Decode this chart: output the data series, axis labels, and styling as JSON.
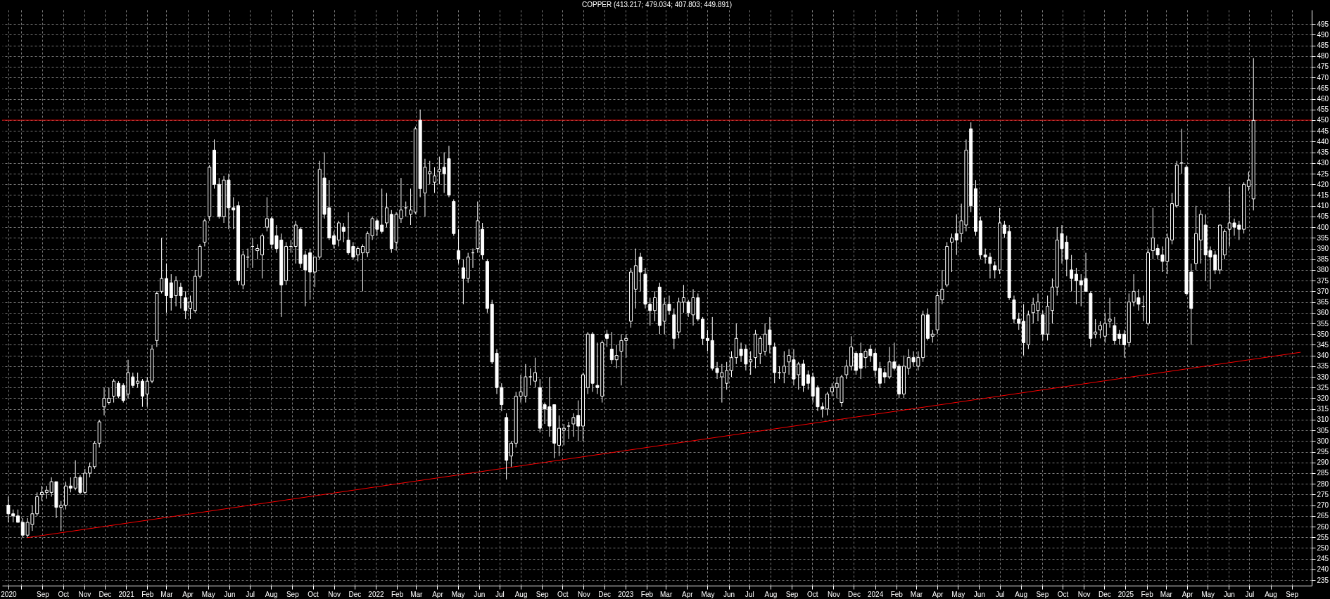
{
  "chart_data": {
    "type": "candlestick",
    "title": "COPPER (413.217; 479.034; 407.803; 449.891)",
    "x": [
      "2020-07-13",
      "2020-07-20",
      "2020-07-27",
      "2020-08-03",
      "2020-08-10",
      "2020-08-17",
      "2020-08-24",
      "2020-08-31",
      "2020-09-07",
      "2020-09-14",
      "2020-09-21",
      "2020-09-28",
      "2020-10-05",
      "2020-10-12",
      "2020-10-19",
      "2020-10-26",
      "2020-11-02",
      "2020-11-09",
      "2020-11-16",
      "2020-11-23",
      "2020-11-30",
      "2020-12-07",
      "2020-12-14",
      "2020-12-21",
      "2020-12-28",
      "2021-01-04",
      "2021-01-11",
      "2021-01-18",
      "2021-01-25",
      "2021-02-01",
      "2021-02-08",
      "2021-02-15",
      "2021-02-22",
      "2021-03-01",
      "2021-03-08",
      "2021-03-15",
      "2021-03-22",
      "2021-03-29",
      "2021-04-05",
      "2021-04-12",
      "2021-04-19",
      "2021-04-26",
      "2021-05-03",
      "2021-05-10",
      "2021-05-17",
      "2021-05-24",
      "2021-05-31",
      "2021-06-07",
      "2021-06-14",
      "2021-06-21",
      "2021-06-28",
      "2021-07-05",
      "2021-07-12",
      "2021-07-19",
      "2021-07-26",
      "2021-08-02",
      "2021-08-09",
      "2021-08-16",
      "2021-08-23",
      "2021-08-30",
      "2021-09-06",
      "2021-09-13",
      "2021-09-20",
      "2021-09-27",
      "2021-10-04",
      "2021-10-11",
      "2021-10-18",
      "2021-10-25",
      "2021-11-01",
      "2021-11-08",
      "2021-11-15",
      "2021-11-22",
      "2021-11-29",
      "2021-12-06",
      "2021-12-13",
      "2021-12-20",
      "2021-12-27",
      "2022-01-03",
      "2022-01-10",
      "2022-01-17",
      "2022-01-24",
      "2022-01-31",
      "2022-02-07",
      "2022-02-14",
      "2022-02-21",
      "2022-02-28",
      "2022-03-07",
      "2022-03-14",
      "2022-03-21",
      "2022-03-28",
      "2022-04-04",
      "2022-04-11",
      "2022-04-18",
      "2022-04-25",
      "2022-05-02",
      "2022-05-09",
      "2022-05-16",
      "2022-05-23",
      "2022-05-30",
      "2022-06-06",
      "2022-06-13",
      "2022-06-20",
      "2022-06-27",
      "2022-07-04",
      "2022-07-11",
      "2022-07-18",
      "2022-07-25",
      "2022-08-01",
      "2022-08-08",
      "2022-08-15",
      "2022-08-22",
      "2022-08-29",
      "2022-09-05",
      "2022-09-12",
      "2022-09-19",
      "2022-09-26",
      "2022-10-03",
      "2022-10-10",
      "2022-10-17",
      "2022-10-24",
      "2022-10-31",
      "2022-11-07",
      "2022-11-14",
      "2022-11-21",
      "2022-11-28",
      "2022-12-05",
      "2022-12-12",
      "2022-12-19",
      "2022-12-26",
      "2023-01-02",
      "2023-01-09",
      "2023-01-16",
      "2023-01-23",
      "2023-01-30",
      "2023-02-06",
      "2023-02-13",
      "2023-02-20",
      "2023-02-27",
      "2023-03-06",
      "2023-03-13",
      "2023-03-20",
      "2023-03-27",
      "2023-04-03",
      "2023-04-10",
      "2023-04-17",
      "2023-04-24",
      "2023-05-01",
      "2023-05-08",
      "2023-05-15",
      "2023-05-22",
      "2023-05-29",
      "2023-06-05",
      "2023-06-12",
      "2023-06-19",
      "2023-06-26",
      "2023-07-03",
      "2023-07-10",
      "2023-07-17",
      "2023-07-24",
      "2023-07-31",
      "2023-08-07",
      "2023-08-14",
      "2023-08-21",
      "2023-08-28",
      "2023-09-04",
      "2023-09-11",
      "2023-09-18",
      "2023-09-25",
      "2023-10-02",
      "2023-10-09",
      "2023-10-16",
      "2023-10-23",
      "2023-10-30",
      "2023-11-06",
      "2023-11-13",
      "2023-11-20",
      "2023-11-27",
      "2023-12-04",
      "2023-12-11",
      "2023-12-18",
      "2023-12-25",
      "2024-01-01",
      "2024-01-08",
      "2024-01-15",
      "2024-01-22",
      "2024-01-29",
      "2024-02-05",
      "2024-02-12",
      "2024-02-19",
      "2024-02-26",
      "2024-03-04",
      "2024-03-11",
      "2024-03-18",
      "2024-03-25",
      "2024-04-01",
      "2024-04-08",
      "2024-04-15",
      "2024-04-22",
      "2024-04-29",
      "2024-05-06",
      "2024-05-13",
      "2024-05-20",
      "2024-05-27",
      "2024-06-03",
      "2024-06-10",
      "2024-06-17",
      "2024-06-24",
      "2024-07-01",
      "2024-07-08",
      "2024-07-15",
      "2024-07-22",
      "2024-07-29",
      "2024-08-05",
      "2024-08-12",
      "2024-08-19",
      "2024-08-26",
      "2024-09-02",
      "2024-09-09",
      "2024-09-16",
      "2024-09-23",
      "2024-09-30",
      "2024-10-07",
      "2024-10-14",
      "2024-10-21",
      "2024-10-28",
      "2024-11-04",
      "2024-11-11",
      "2024-11-18",
      "2024-11-25",
      "2024-12-02",
      "2024-12-09",
      "2024-12-16",
      "2024-12-23",
      "2024-12-30",
      "2025-01-06",
      "2025-01-13",
      "2025-01-20",
      "2025-01-27",
      "2025-02-03",
      "2025-02-10",
      "2025-02-17",
      "2025-02-24",
      "2025-03-03",
      "2025-03-10",
      "2025-03-17",
      "2025-03-24",
      "2025-03-31",
      "2025-04-07",
      "2025-04-14",
      "2025-04-21",
      "2025-04-28",
      "2025-05-05",
      "2025-05-12",
      "2025-05-19",
      "2025-05-26",
      "2025-06-02",
      "2025-06-09",
      "2025-06-16",
      "2025-06-23",
      "2025-06-30",
      "2025-07-07"
    ],
    "series": [
      {
        "type": "line",
        "x": [
          "2020-08-09",
          "2025-09-14"
        ],
        "values": [
          254.8,
          341.5
        ],
        "color": "#ff0000"
      },
      {
        "color": "#ffffff",
        "ohlc": [
          [
            270,
            274,
            262,
            266
          ],
          [
            266,
            268,
            262,
            265
          ],
          [
            265,
            268,
            262,
            262
          ],
          [
            262,
            264,
            255,
            256
          ],
          [
            256,
            264,
            255,
            262
          ],
          [
            261,
            270,
            258,
            266
          ],
          [
            266,
            276,
            265,
            274
          ],
          [
            275,
            279,
            272,
            276
          ],
          [
            276,
            279,
            273,
            277
          ],
          [
            276,
            283,
            274,
            281
          ],
          [
            281,
            281,
            264,
            269
          ],
          [
            269,
            272,
            258,
            270
          ],
          [
            270,
            281,
            268,
            279
          ],
          [
            279,
            283,
            276,
            278
          ],
          [
            278,
            291,
            277,
            283
          ],
          [
            283,
            284,
            275,
            276
          ],
          [
            276,
            287,
            275,
            285
          ],
          [
            285,
            290,
            283,
            288
          ],
          [
            288,
            300,
            287,
            299
          ],
          [
            299,
            310,
            297,
            309
          ],
          [
            316,
            325,
            312,
            320
          ],
          [
            318,
            325,
            317,
            320
          ],
          [
            321,
            329,
            318,
            328
          ],
          [
            327,
            328,
            320,
            321
          ],
          [
            326,
            327,
            318,
            319
          ],
          [
            322,
            338,
            320,
            332
          ],
          [
            330,
            332,
            325,
            326
          ],
          [
            327,
            332,
            325,
            328
          ],
          [
            328,
            329,
            316,
            321
          ],
          [
            322,
            330,
            316,
            328
          ],
          [
            328,
            345,
            327,
            343
          ],
          [
            347,
            370,
            344,
            369
          ],
          [
            370,
            395,
            369,
            376
          ],
          [
            376,
            383,
            360,
            368
          ],
          [
            374,
            378,
            361,
            367
          ],
          [
            368,
            377,
            363,
            375
          ],
          [
            372,
            374,
            362,
            368
          ],
          [
            367,
            370,
            357,
            361
          ],
          [
            362,
            368,
            357,
            365
          ],
          [
            361,
            380,
            360,
            377
          ],
          [
            377,
            392,
            376,
            391
          ],
          [
            393,
            404,
            391,
            403
          ],
          [
            405,
            429,
            403,
            428
          ],
          [
            436,
            441,
            418,
            420
          ],
          [
            420,
            423,
            404,
            405
          ],
          [
            405,
            424,
            402,
            422
          ],
          [
            422,
            425,
            399,
            409
          ],
          [
            409,
            414,
            399,
            408
          ],
          [
            410,
            412,
            373,
            375
          ],
          [
            373,
            389,
            371,
            387
          ],
          [
            386,
            390,
            381,
            386
          ],
          [
            391,
            395,
            381,
            391
          ],
          [
            389,
            392,
            385,
            390
          ],
          [
            387,
            397,
            376,
            396
          ],
          [
            400,
            414,
            398,
            404
          ],
          [
            404,
            405,
            390,
            392
          ],
          [
            396,
            401,
            388,
            390
          ],
          [
            394,
            397,
            358,
            373
          ],
          [
            375,
            393,
            373,
            391
          ],
          [
            391,
            394,
            388,
            391
          ],
          [
            391,
            403,
            383,
            401
          ],
          [
            399,
            400,
            381,
            383
          ],
          [
            387,
            389,
            363,
            380
          ],
          [
            388,
            390,
            366,
            379
          ],
          [
            379,
            386,
            372,
            386
          ],
          [
            386,
            431,
            385,
            427
          ],
          [
            423,
            435,
            404,
            406
          ],
          [
            409,
            422,
            394,
            395
          ],
          [
            396,
            398,
            390,
            392
          ],
          [
            394,
            403,
            391,
            402
          ],
          [
            400,
            402,
            393,
            398
          ],
          [
            394,
            407,
            387,
            388
          ],
          [
            391,
            393,
            385,
            386
          ],
          [
            387,
            391,
            384,
            390
          ],
          [
            388,
            392,
            370,
            391
          ],
          [
            388,
            398,
            386,
            397
          ],
          [
            396,
            405,
            394,
            404
          ],
          [
            403,
            404,
            396,
            399
          ],
          [
            401,
            418,
            397,
            398
          ],
          [
            402,
            416,
            400,
            409
          ],
          [
            406,
            408,
            388,
            390
          ],
          [
            393,
            407,
            389,
            406
          ],
          [
            404,
            423,
            402,
            408
          ],
          [
            409,
            412,
            405,
            409
          ],
          [
            406,
            418,
            401,
            408
          ],
          [
            407,
            447,
            406,
            446
          ],
          [
            450,
            455,
            414,
            418
          ],
          [
            416,
            432,
            405,
            428
          ],
          [
            425,
            431,
            420,
            426
          ],
          [
            421,
            428,
            416,
            424
          ],
          [
            426,
            433,
            420,
            427
          ],
          [
            428,
            435,
            416,
            425
          ],
          [
            432,
            438,
            414,
            415
          ],
          [
            412,
            413,
            396,
            397
          ],
          [
            389,
            399,
            383,
            385
          ],
          [
            381,
            385,
            364,
            376
          ],
          [
            376,
            388,
            374,
            386
          ],
          [
            388,
            390,
            381,
            388
          ],
          [
            390,
            412,
            388,
            403
          ],
          [
            399,
            402,
            385,
            387
          ],
          [
            384,
            385,
            360,
            362
          ],
          [
            364,
            366,
            336,
            337
          ],
          [
            341,
            343,
            322,
            325
          ],
          [
            325,
            327,
            314,
            317
          ],
          [
            311,
            313,
            282,
            291
          ],
          [
            293,
            300,
            288,
            299
          ],
          [
            299,
            323,
            297,
            321
          ],
          [
            321,
            331,
            318,
            323
          ],
          [
            321,
            336,
            318,
            330
          ],
          [
            330,
            334,
            326,
            330
          ],
          [
            328,
            339,
            325,
            332
          ],
          [
            325,
            329,
            304,
            306
          ],
          [
            317,
            318,
            308,
            315
          ],
          [
            316,
            330,
            302,
            307
          ],
          [
            317,
            317,
            292,
            299
          ],
          [
            298,
            312,
            293,
            306
          ],
          [
            305,
            308,
            298,
            306
          ],
          [
            307,
            309,
            301,
            307
          ],
          [
            308,
            313,
            302,
            311
          ],
          [
            312,
            319,
            300,
            307
          ],
          [
            307,
            332,
            300,
            331
          ],
          [
            325,
            351,
            322,
            350
          ],
          [
            350,
            351,
            323,
            327
          ],
          [
            326,
            346,
            322,
            325
          ],
          [
            321,
            347,
            318,
            346
          ],
          [
            350,
            352,
            344,
            348
          ],
          [
            343,
            351,
            336,
            338
          ],
          [
            338,
            345,
            334,
            340
          ],
          [
            342,
            350,
            326,
            347
          ],
          [
            347,
            350,
            339,
            348
          ],
          [
            356,
            381,
            353,
            379
          ],
          [
            371,
            390,
            362,
            382
          ],
          [
            386,
            388,
            370,
            379
          ],
          [
            378,
            381,
            362,
            364
          ],
          [
            364,
            367,
            354,
            361
          ],
          [
            361,
            370,
            356,
            367
          ],
          [
            372,
            374,
            350,
            354
          ],
          [
            356,
            367,
            350,
            364
          ],
          [
            364,
            368,
            359,
            361
          ],
          [
            359,
            362,
            343,
            348
          ],
          [
            351,
            367,
            348,
            365
          ],
          [
            365,
            373,
            360,
            367
          ],
          [
            365,
            366,
            358,
            360
          ],
          [
            359,
            371,
            354,
            367
          ],
          [
            367,
            369,
            356,
            357
          ],
          [
            357,
            358,
            345,
            348
          ],
          [
            348,
            352,
            342,
            347
          ],
          [
            347,
            358,
            333,
            334
          ],
          [
            334,
            337,
            329,
            332
          ],
          [
            330,
            336,
            318,
            332
          ],
          [
            327,
            337,
            324,
            333
          ],
          [
            333,
            342,
            330,
            339
          ],
          [
            339,
            355,
            336,
            348
          ],
          [
            343,
            346,
            337,
            340
          ],
          [
            343,
            345,
            333,
            336
          ],
          [
            337,
            342,
            331,
            338
          ],
          [
            339,
            352,
            334,
            350
          ],
          [
            341,
            349,
            336,
            348
          ],
          [
            342,
            355,
            340,
            350
          ],
          [
            352,
            358,
            341,
            345
          ],
          [
            344,
            346,
            327,
            332
          ],
          [
            332,
            335,
            329,
            332
          ],
          [
            332,
            342,
            327,
            335
          ],
          [
            337,
            343,
            331,
            340
          ],
          [
            338,
            343,
            326,
            329
          ],
          [
            331,
            337,
            324,
            336
          ],
          [
            336,
            338,
            323,
            326
          ],
          [
            331,
            333,
            324,
            327
          ],
          [
            330,
            332,
            318,
            321
          ],
          [
            325,
            326,
            314,
            316
          ],
          [
            316,
            318,
            311,
            315
          ],
          [
            315,
            323,
            312,
            322
          ],
          [
            323,
            327,
            321,
            325
          ],
          [
            325,
            330,
            320,
            327
          ],
          [
            318,
            331,
            316,
            330
          ],
          [
            331,
            338,
            329,
            335
          ],
          [
            335,
            349,
            333,
            344
          ],
          [
            341,
            342,
            331,
            333
          ],
          [
            341,
            346,
            329,
            334
          ],
          [
            339,
            343,
            334,
            342
          ],
          [
            343,
            345,
            337,
            340
          ],
          [
            341,
            343,
            330,
            333
          ],
          [
            334,
            337,
            325,
            327
          ],
          [
            332,
            334,
            327,
            330
          ],
          [
            330,
            344,
            329,
            337
          ],
          [
            337,
            346,
            333,
            334
          ],
          [
            335,
            336,
            320,
            322
          ],
          [
            322,
            340,
            320,
            335
          ],
          [
            334,
            343,
            331,
            339
          ],
          [
            339,
            342,
            335,
            337
          ],
          [
            335,
            342,
            333,
            339
          ],
          [
            339,
            361,
            337,
            359
          ],
          [
            359,
            362,
            347,
            348
          ],
          [
            349,
            352,
            346,
            350
          ],
          [
            352,
            370,
            350,
            368
          ],
          [
            366,
            380,
            364,
            371
          ],
          [
            373,
            393,
            372,
            391
          ],
          [
            393,
            397,
            379,
            395
          ],
          [
            397,
            406,
            387,
            394
          ],
          [
            397,
            411,
            393,
            403
          ],
          [
            401,
            441,
            398,
            436
          ],
          [
            446,
            449,
            407,
            410
          ],
          [
            418,
            422,
            396,
            398
          ],
          [
            403,
            405,
            385,
            387
          ],
          [
            387,
            390,
            383,
            386
          ],
          [
            386,
            388,
            376,
            383
          ],
          [
            382,
            384,
            376,
            380
          ],
          [
            380,
            409,
            378,
            402
          ],
          [
            401,
            403,
            395,
            397
          ],
          [
            398,
            401,
            366,
            367
          ],
          [
            366,
            368,
            355,
            357
          ],
          [
            357,
            360,
            352,
            355
          ],
          [
            356,
            364,
            340,
            346
          ],
          [
            345,
            361,
            343,
            359
          ],
          [
            360,
            367,
            355,
            364
          ],
          [
            361,
            369,
            356,
            365
          ],
          [
            359,
            361,
            347,
            350
          ],
          [
            350,
            368,
            347,
            363
          ],
          [
            361,
            376,
            355,
            372
          ],
          [
            372,
            400,
            368,
            394
          ],
          [
            397,
            401,
            383,
            390
          ],
          [
            393,
            396,
            377,
            385
          ],
          [
            380,
            387,
            370,
            376
          ],
          [
            378,
            381,
            364,
            375
          ],
          [
            375,
            378,
            363,
            373
          ],
          [
            376,
            388,
            370,
            370
          ],
          [
            369,
            370,
            344,
            348
          ],
          [
            350,
            357,
            348,
            351
          ],
          [
            352,
            356,
            348,
            354
          ],
          [
            349,
            360,
            346,
            355
          ],
          [
            356,
            367,
            353,
            357
          ],
          [
            354,
            358,
            345,
            347
          ],
          [
            350,
            352,
            345,
            348
          ],
          [
            350,
            352,
            339,
            345
          ],
          [
            346,
            369,
            344,
            365
          ],
          [
            365,
            378,
            363,
            370
          ],
          [
            367,
            371,
            361,
            364
          ],
          [
            363,
            368,
            356,
            363
          ],
          [
            355,
            390,
            354,
            388
          ],
          [
            389,
            409,
            385,
            395
          ],
          [
            390,
            392,
            385,
            387
          ],
          [
            387,
            391,
            379,
            384
          ],
          [
            384,
            397,
            378,
            395
          ],
          [
            394,
            416,
            392,
            411
          ],
          [
            410,
            431,
            409,
            429
          ],
          [
            430,
            446,
            425,
            430
          ],
          [
            428,
            429,
            368,
            369
          ],
          [
            379,
            383,
            345,
            362
          ],
          [
            383,
            410,
            380,
            397
          ],
          [
            394,
            408,
            383,
            406
          ],
          [
            401,
            406,
            375,
            387
          ],
          [
            389,
            391,
            371,
            386
          ],
          [
            387,
            389,
            378,
            380
          ],
          [
            380,
            401,
            378,
            401
          ],
          [
            387,
            399,
            385,
            398
          ],
          [
            399,
            419,
            391,
            402
          ],
          [
            402,
            404,
            396,
            400
          ],
          [
            401,
            403,
            394,
            399
          ],
          [
            399,
            421,
            397,
            420
          ],
          [
            419,
            426,
            417,
            422
          ],
          [
            413.217,
            479.034,
            407.803,
            449.891
          ]
        ]
      }
    ],
    "ref_lines": [
      {
        "axis": "y",
        "value": 450,
        "color": "#ff0000"
      }
    ],
    "xlim": [
      "2020-07-09",
      "2025-09-25"
    ],
    "xticks": [
      {
        "value": "2020-07-13",
        "label": "2020"
      },
      {
        "value": "2020-08-01",
        "label": null
      },
      {
        "value": "2020-09-01",
        "label": "Sep"
      },
      {
        "value": "2020-10-01",
        "label": "Oct"
      },
      {
        "value": "2020-11-01",
        "label": "Nov"
      },
      {
        "value": "2020-12-01",
        "label": "Dec"
      },
      {
        "value": "2021-01-01",
        "label": "2021"
      },
      {
        "value": "2021-02-01",
        "label": "Feb"
      },
      {
        "value": "2021-03-01",
        "label": "Mar"
      },
      {
        "value": "2021-04-01",
        "label": "Apr"
      },
      {
        "value": "2021-05-01",
        "label": "May"
      },
      {
        "value": "2021-06-01",
        "label": "Jun"
      },
      {
        "value": "2021-07-01",
        "label": "Jul"
      },
      {
        "value": "2021-08-01",
        "label": "Aug"
      },
      {
        "value": "2021-09-01",
        "label": "Sep"
      },
      {
        "value": "2021-10-01",
        "label": "Oct"
      },
      {
        "value": "2021-11-01",
        "label": "Nov"
      },
      {
        "value": "2021-12-01",
        "label": "Dec"
      },
      {
        "value": "2022-01-01",
        "label": "2022"
      },
      {
        "value": "2022-02-01",
        "label": "Feb"
      },
      {
        "value": "2022-03-01",
        "label": "Mar"
      },
      {
        "value": "2022-04-01",
        "label": "Apr"
      },
      {
        "value": "2022-05-01",
        "label": "May"
      },
      {
        "value": "2022-06-01",
        "label": "Jun"
      },
      {
        "value": "2022-07-01",
        "label": "Jul"
      },
      {
        "value": "2022-08-01",
        "label": "Aug"
      },
      {
        "value": "2022-09-01",
        "label": "Sep"
      },
      {
        "value": "2022-10-01",
        "label": "Oct"
      },
      {
        "value": "2022-11-01",
        "label": "Nov"
      },
      {
        "value": "2022-12-01",
        "label": "Dec"
      },
      {
        "value": "2023-01-01",
        "label": "2023"
      },
      {
        "value": "2023-02-01",
        "label": "Feb"
      },
      {
        "value": "2023-03-01",
        "label": "Mar"
      },
      {
        "value": "2023-04-01",
        "label": "Apr"
      },
      {
        "value": "2023-05-01",
        "label": "May"
      },
      {
        "value": "2023-06-01",
        "label": "Jun"
      },
      {
        "value": "2023-07-01",
        "label": "Jul"
      },
      {
        "value": "2023-08-01",
        "label": "Aug"
      },
      {
        "value": "2023-09-01",
        "label": "Sep"
      },
      {
        "value": "2023-10-01",
        "label": "Oct"
      },
      {
        "value": "2023-11-01",
        "label": "Nov"
      },
      {
        "value": "2023-12-01",
        "label": "Dec"
      },
      {
        "value": "2024-01-01",
        "label": "2024"
      },
      {
        "value": "2024-02-01",
        "label": "Feb"
      },
      {
        "value": "2024-03-01",
        "label": "Mar"
      },
      {
        "value": "2024-04-01",
        "label": "Apr"
      },
      {
        "value": "2024-05-01",
        "label": "May"
      },
      {
        "value": "2024-06-01",
        "label": "Jun"
      },
      {
        "value": "2024-07-01",
        "label": "Jul"
      },
      {
        "value": "2024-08-01",
        "label": "Aug"
      },
      {
        "value": "2024-09-01",
        "label": "Sep"
      },
      {
        "value": "2024-10-01",
        "label": "Oct"
      },
      {
        "value": "2024-11-01",
        "label": "Nov"
      },
      {
        "value": "2024-12-01",
        "label": "Dec"
      },
      {
        "value": "2025-01-01",
        "label": "2025"
      },
      {
        "value": "2025-02-01",
        "label": "Feb"
      },
      {
        "value": "2025-03-01",
        "label": "Mar"
      },
      {
        "value": "2025-04-01",
        "label": "Apr"
      },
      {
        "value": "2025-05-01",
        "label": "May"
      },
      {
        "value": "2025-06-01",
        "label": "Jun"
      },
      {
        "value": "2025-07-01",
        "label": "Jul"
      },
      {
        "value": "2025-08-01",
        "label": "Aug"
      },
      {
        "value": "2025-09-01",
        "label": "Sep"
      }
    ],
    "ylim": [
      232.4,
      501.6
    ],
    "yticks": [
      235,
      240,
      245,
      250,
      255,
      260,
      265,
      270,
      275,
      280,
      285,
      290,
      295,
      300,
      305,
      310,
      315,
      320,
      325,
      330,
      335,
      340,
      345,
      350,
      355,
      360,
      365,
      370,
      375,
      380,
      385,
      390,
      395,
      400,
      405,
      410,
      415,
      420,
      425,
      430,
      435,
      440,
      445,
      450,
      455,
      460,
      465,
      470,
      475,
      480,
      485,
      490,
      495
    ],
    "grid": true
  }
}
